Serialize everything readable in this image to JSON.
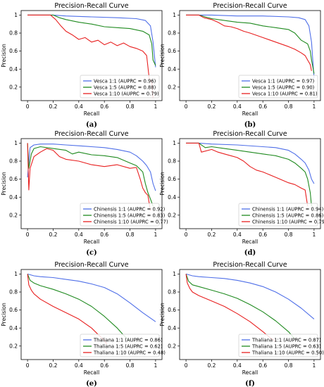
{
  "chart_data": [
    {
      "type": "line",
      "panel_label": "(a)",
      "title": "Precision-Recall Curve",
      "xlabel": "Recall",
      "ylabel": "Precision",
      "xlim": [
        -0.05,
        1.05
      ],
      "ylim": [
        0.05,
        1.05
      ],
      "xticks": [
        0.0,
        0.2,
        0.4,
        0.6,
        0.8,
        1.0
      ],
      "yticks": [
        0.2,
        0.4,
        0.6,
        0.8,
        1.0
      ],
      "legend_position": "lower-right",
      "series": [
        {
          "name": "Vesca 1:1 (AUPRC = 0.96)",
          "color": "#4f6fe8",
          "x": [
            0.0,
            0.2,
            0.3,
            0.5,
            0.7,
            0.85,
            0.92,
            0.96,
            0.98,
            1.0
          ],
          "y": [
            1.0,
            1.0,
            0.99,
            0.98,
            0.97,
            0.96,
            0.94,
            0.88,
            0.7,
            0.42
          ]
        },
        {
          "name": "Vesca 1:5 (AUPRC = 0.88)",
          "color": "#1f8a1f",
          "x": [
            0.0,
            0.2,
            0.25,
            0.3,
            0.4,
            0.5,
            0.6,
            0.7,
            0.8,
            0.9,
            0.95,
            0.97,
            0.98,
            1.0
          ],
          "y": [
            1.0,
            1.0,
            0.97,
            0.95,
            0.92,
            0.9,
            0.87,
            0.86,
            0.85,
            0.82,
            0.78,
            0.68,
            0.5,
            0.44
          ]
        },
        {
          "name": "Vesca 1:10 (AUPRC = 0.79)",
          "color": "#e82020",
          "x": [
            0.0,
            0.18,
            0.22,
            0.26,
            0.3,
            0.35,
            0.4,
            0.45,
            0.5,
            0.55,
            0.6,
            0.65,
            0.7,
            0.75,
            0.8,
            0.85,
            0.9,
            0.93,
            0.95,
            0.97,
            0.98
          ],
          "y": [
            1.0,
            1.0,
            0.95,
            0.88,
            0.82,
            0.78,
            0.73,
            0.75,
            0.7,
            0.72,
            0.67,
            0.7,
            0.66,
            0.69,
            0.65,
            0.63,
            0.6,
            0.55,
            0.3,
            0.25,
            0.08
          ]
        }
      ]
    },
    {
      "type": "line",
      "panel_label": "(b)",
      "title": "Precision-Recall Curve",
      "xlabel": "Recall",
      "ylabel": "Precision",
      "xlim": [
        -0.05,
        1.05
      ],
      "ylim": [
        0.05,
        1.05
      ],
      "xticks": [
        0.0,
        0.2,
        0.4,
        0.6,
        0.8,
        1.0
      ],
      "yticks": [
        0.2,
        0.4,
        0.6,
        0.8,
        1.0
      ],
      "legend_position": "lower-right",
      "series": [
        {
          "name": "Vesca 1:1 (AUPRC = 0.97)",
          "color": "#4f6fe8",
          "x": [
            0.0,
            0.1,
            0.2,
            0.4,
            0.6,
            0.8,
            0.88,
            0.93,
            0.96,
            0.98,
            1.0
          ],
          "y": [
            1.0,
            1.0,
            1.0,
            0.99,
            0.99,
            0.98,
            0.97,
            0.95,
            0.88,
            0.7,
            0.3
          ]
        },
        {
          "name": "Vesca 1:5 (AUPRC = 0.90)",
          "color": "#1f8a1f",
          "x": [
            0.0,
            0.1,
            0.15,
            0.2,
            0.3,
            0.4,
            0.5,
            0.6,
            0.7,
            0.8,
            0.85,
            0.9,
            0.95,
            0.97,
            0.98,
            1.0
          ],
          "y": [
            1.0,
            1.0,
            0.98,
            0.96,
            0.94,
            0.92,
            0.91,
            0.88,
            0.86,
            0.84,
            0.8,
            0.72,
            0.68,
            0.6,
            0.5,
            0.35
          ]
        },
        {
          "name": "Vesca 1:10 (AUPRC = 0.81)",
          "color": "#e82020",
          "x": [
            0.0,
            0.1,
            0.14,
            0.2,
            0.25,
            0.3,
            0.35,
            0.4,
            0.45,
            0.5,
            0.6,
            0.7,
            0.8,
            0.85,
            0.9,
            0.93,
            0.95,
            0.97,
            0.98
          ],
          "y": [
            1.0,
            1.0,
            0.97,
            0.95,
            0.92,
            0.88,
            0.87,
            0.85,
            0.82,
            0.8,
            0.75,
            0.7,
            0.65,
            0.62,
            0.58,
            0.55,
            0.5,
            0.45,
            0.38
          ]
        }
      ]
    },
    {
      "type": "line",
      "panel_label": "(c)",
      "title": "Precision-Recall Curve",
      "xlabel": "Recall",
      "ylabel": "Precision",
      "xlim": [
        -0.05,
        1.05
      ],
      "ylim": [
        0.05,
        1.05
      ],
      "xticks": [
        0.0,
        0.2,
        0.4,
        0.6,
        0.8,
        1.0
      ],
      "yticks": [
        0.2,
        0.4,
        0.6,
        0.8,
        1.0
      ],
      "legend_position": "lower-right",
      "series": [
        {
          "name": "Chinensis 1:1 (AUPRC = 0.92)",
          "color": "#4f6fe8",
          "x": [
            0.0,
            0.02,
            0.05,
            0.1,
            0.2,
            0.3,
            0.4,
            0.5,
            0.6,
            0.7,
            0.8,
            0.85,
            0.9,
            0.93,
            0.96,
            0.98,
            1.0
          ],
          "y": [
            0.62,
            0.95,
            0.98,
            0.99,
            0.99,
            0.98,
            0.97,
            0.96,
            0.95,
            0.93,
            0.9,
            0.86,
            0.8,
            0.75,
            0.68,
            0.55,
            0.47
          ]
        },
        {
          "name": "Chinensis 1:5 (AUPRC = 0.83)",
          "color": "#1f8a1f",
          "x": [
            0.0,
            0.01,
            0.03,
            0.05,
            0.1,
            0.2,
            0.3,
            0.35,
            0.4,
            0.5,
            0.6,
            0.7,
            0.8,
            0.85,
            0.9,
            0.92,
            0.94,
            0.96,
            0.98
          ],
          "y": [
            1.0,
            0.72,
            0.88,
            0.94,
            0.96,
            0.94,
            0.92,
            0.88,
            0.9,
            0.87,
            0.86,
            0.84,
            0.78,
            0.75,
            0.68,
            0.55,
            0.45,
            0.38,
            0.3
          ]
        },
        {
          "name": "Chinensis 1:10 (AUPRC = 0.77)",
          "color": "#e82020",
          "x": [
            0.0,
            0.01,
            0.02,
            0.05,
            0.1,
            0.15,
            0.2,
            0.25,
            0.3,
            0.4,
            0.5,
            0.6,
            0.7,
            0.8,
            0.85,
            0.88,
            0.9,
            0.92,
            0.94,
            0.96
          ],
          "y": [
            1.0,
            0.48,
            0.72,
            0.85,
            0.9,
            0.94,
            0.92,
            0.85,
            0.82,
            0.8,
            0.76,
            0.74,
            0.76,
            0.72,
            0.73,
            0.6,
            0.5,
            0.45,
            0.42,
            0.25
          ]
        }
      ]
    },
    {
      "type": "line",
      "panel_label": "(d)",
      "title": "Precision-Recall Curve",
      "xlabel": "Recall",
      "ylabel": "Precision",
      "xlim": [
        -0.05,
        1.05
      ],
      "ylim": [
        0.05,
        1.05
      ],
      "xticks": [
        0.0,
        0.2,
        0.4,
        0.6,
        0.8,
        1.0
      ],
      "yticks": [
        0.2,
        0.4,
        0.6,
        0.8,
        1.0
      ],
      "legend_position": "lower-right",
      "series": [
        {
          "name": "Chinensis 1:1 (AUPRC = 0.94)",
          "color": "#4f6fe8",
          "x": [
            0.0,
            0.1,
            0.2,
            0.4,
            0.6,
            0.7,
            0.8,
            0.85,
            0.9,
            0.93,
            0.96,
            0.98,
            1.0
          ],
          "y": [
            1.0,
            1.0,
            0.99,
            0.98,
            0.96,
            0.95,
            0.92,
            0.88,
            0.82,
            0.78,
            0.7,
            0.6,
            0.55
          ]
        },
        {
          "name": "Chinensis 1:5 (AUPRC = 0.86)",
          "color": "#1f8a1f",
          "x": [
            0.0,
            0.1,
            0.15,
            0.2,
            0.3,
            0.4,
            0.5,
            0.6,
            0.7,
            0.8,
            0.85,
            0.9,
            0.93,
            0.95,
            0.97,
            0.98
          ],
          "y": [
            1.0,
            1.0,
            0.95,
            0.96,
            0.94,
            0.92,
            0.9,
            0.88,
            0.86,
            0.82,
            0.78,
            0.72,
            0.68,
            0.6,
            0.45,
            0.3
          ]
        },
        {
          "name": "Chinensis 1:10 (AUPRC = 0.79)",
          "color": "#e82020",
          "x": [
            0.0,
            0.1,
            0.12,
            0.2,
            0.25,
            0.3,
            0.35,
            0.4,
            0.45,
            0.5,
            0.55,
            0.6,
            0.7,
            0.8,
            0.85,
            0.9,
            0.93,
            0.95
          ],
          "y": [
            1.0,
            1.0,
            0.9,
            0.93,
            0.9,
            0.88,
            0.86,
            0.84,
            0.8,
            0.74,
            0.7,
            0.68,
            0.62,
            0.56,
            0.54,
            0.5,
            0.48,
            0.3
          ]
        }
      ]
    },
    {
      "type": "line",
      "panel_label": "(e)",
      "title": "Precision-Recall Curve",
      "xlabel": "Recall",
      "ylabel": "Precision",
      "xlim": [
        -0.05,
        1.05
      ],
      "ylim": [
        0.05,
        1.05
      ],
      "xticks": [
        0.0,
        0.2,
        0.4,
        0.6,
        0.8,
        1.0
      ],
      "yticks": [
        0.2,
        0.4,
        0.6,
        0.8,
        1.0
      ],
      "legend_position": "lower-right",
      "series": [
        {
          "name": "Thaliana 1:1 (AUPRC = 0.86)",
          "color": "#4f6fe8",
          "x": [
            0.0,
            0.05,
            0.1,
            0.2,
            0.3,
            0.4,
            0.5,
            0.6,
            0.7,
            0.8,
            0.9,
            1.0
          ],
          "y": [
            1.0,
            0.98,
            0.97,
            0.96,
            0.94,
            0.92,
            0.89,
            0.85,
            0.78,
            0.68,
            0.57,
            0.47
          ]
        },
        {
          "name": "Thaliana 1:5 (AUPRC = 0.62)",
          "color": "#1f8a1f",
          "x": [
            0.0,
            0.02,
            0.05,
            0.1,
            0.2,
            0.3,
            0.4,
            0.5,
            0.6,
            0.7,
            0.75,
            0.8
          ],
          "y": [
            1.0,
            0.93,
            0.9,
            0.87,
            0.83,
            0.78,
            0.72,
            0.64,
            0.53,
            0.4,
            0.32,
            0.25
          ]
        },
        {
          "name": "Thaliana 1:10 (AUPRC = 0.48)",
          "color": "#e82020",
          "x": [
            0.0,
            0.01,
            0.03,
            0.05,
            0.1,
            0.2,
            0.3,
            0.4,
            0.5,
            0.55,
            0.6,
            0.62
          ],
          "y": [
            1.0,
            0.88,
            0.82,
            0.78,
            0.72,
            0.64,
            0.57,
            0.5,
            0.4,
            0.33,
            0.26,
            0.22
          ]
        }
      ]
    },
    {
      "type": "line",
      "panel_label": "(f)",
      "title": "Precision-Recall Curve",
      "xlabel": "Recall",
      "ylabel": "Precision",
      "xlim": [
        -0.05,
        1.05
      ],
      "ylim": [
        0.05,
        1.05
      ],
      "xticks": [
        0.0,
        0.2,
        0.4,
        0.6,
        0.8,
        1.0
      ],
      "yticks": [
        0.2,
        0.4,
        0.6,
        0.8,
        1.0
      ],
      "legend_position": "lower-right",
      "series": [
        {
          "name": "Thaliana 1:1 (AUPRC = 0.87)",
          "color": "#4f6fe8",
          "x": [
            0.0,
            0.05,
            0.1,
            0.2,
            0.3,
            0.4,
            0.5,
            0.6,
            0.7,
            0.8,
            0.9,
            1.0
          ],
          "y": [
            1.0,
            0.98,
            0.97,
            0.96,
            0.95,
            0.93,
            0.9,
            0.86,
            0.8,
            0.72,
            0.62,
            0.5
          ]
        },
        {
          "name": "Thaliana 1:5 (AUPRC = 0.63)",
          "color": "#1f8a1f",
          "x": [
            0.0,
            0.02,
            0.05,
            0.1,
            0.2,
            0.3,
            0.4,
            0.5,
            0.6,
            0.7,
            0.8,
            0.85
          ],
          "y": [
            1.0,
            0.92,
            0.88,
            0.86,
            0.82,
            0.78,
            0.73,
            0.66,
            0.58,
            0.48,
            0.36,
            0.28
          ]
        },
        {
          "name": "Thaliana 1:10 (AUPRC = 0.50)",
          "color": "#e82020",
          "x": [
            0.0,
            0.01,
            0.03,
            0.05,
            0.1,
            0.2,
            0.3,
            0.4,
            0.5,
            0.6,
            0.65,
            0.7
          ],
          "y": [
            1.0,
            0.9,
            0.84,
            0.8,
            0.76,
            0.7,
            0.64,
            0.56,
            0.47,
            0.36,
            0.3,
            0.25
          ]
        }
      ]
    }
  ]
}
